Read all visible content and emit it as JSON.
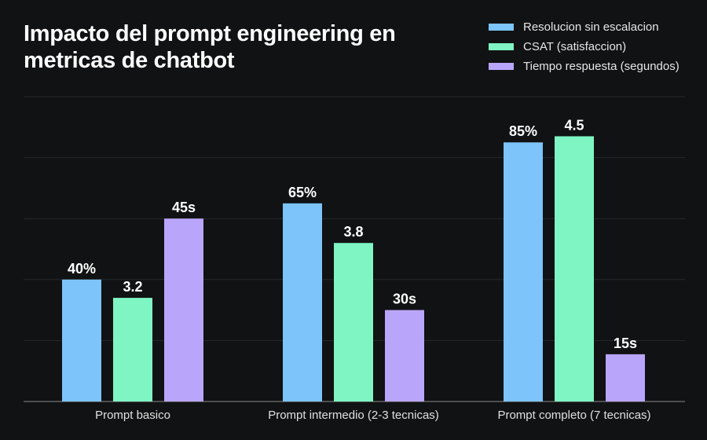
{
  "chart_data": {
    "type": "bar",
    "title": "Impacto del prompt engineering en metricas de chatbot",
    "categories": [
      "Prompt basico",
      "Prompt intermedio (2-3 tecnicas)",
      "Prompt completo (7 tecnicas)"
    ],
    "legend_position": "top-right",
    "grid": true,
    "ylim": [
      0,
      100
    ],
    "series": [
      {
        "name": "Resolucion sin escalacion",
        "color": "#7cc4fa",
        "values": [
          40,
          65,
          85
        ],
        "labels": [
          "40%",
          "65%",
          "85%"
        ],
        "plot_values": [
          40,
          65,
          85
        ]
      },
      {
        "name": "CSAT (satisfaccion)",
        "color": "#7ff5c4",
        "values": [
          3.2,
          3.8,
          4.5
        ],
        "labels": [
          "3.2",
          "3.8",
          "4.5"
        ],
        "plot_values": [
          34,
          52,
          87
        ]
      },
      {
        "name": "Tiempo respuesta (segundos)",
        "color": "#b9a6fb",
        "values": [
          45,
          30,
          15
        ],
        "labels": [
          "45s",
          "30s",
          "15s"
        ],
        "plot_values": [
          60,
          30,
          15.5
        ]
      }
    ]
  }
}
